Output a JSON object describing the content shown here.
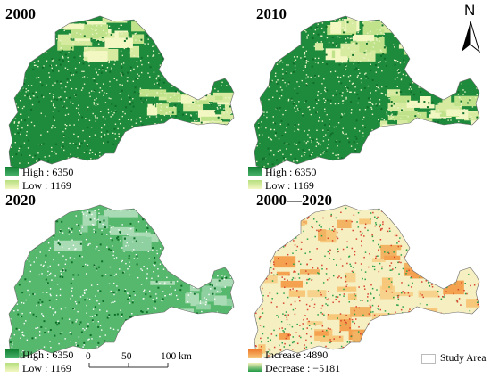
{
  "panels": [
    {
      "title": "2000",
      "legend_high": "High : 6350",
      "legend_low": "Low : 1169"
    },
    {
      "title": "2010",
      "legend_high": "High : 6350",
      "legend_low": "Low : 1169"
    },
    {
      "title": "2020",
      "legend_high": "High : 6350",
      "legend_low": "Low : 1169"
    },
    {
      "title": "2000—2020",
      "legend_high": "Increase :4890",
      "legend_low": "Decrease : −5181"
    }
  ],
  "north_label": "N",
  "scale": {
    "labels": [
      "0",
      "50",
      "100 km"
    ]
  },
  "study_area_label": "Study Area",
  "colors": {
    "high": "#1e8a3c",
    "low": "#f3f7c2",
    "increase": "#ef8a3d",
    "decrease": "#2aa148",
    "change_bg": "#f6efc2"
  }
}
